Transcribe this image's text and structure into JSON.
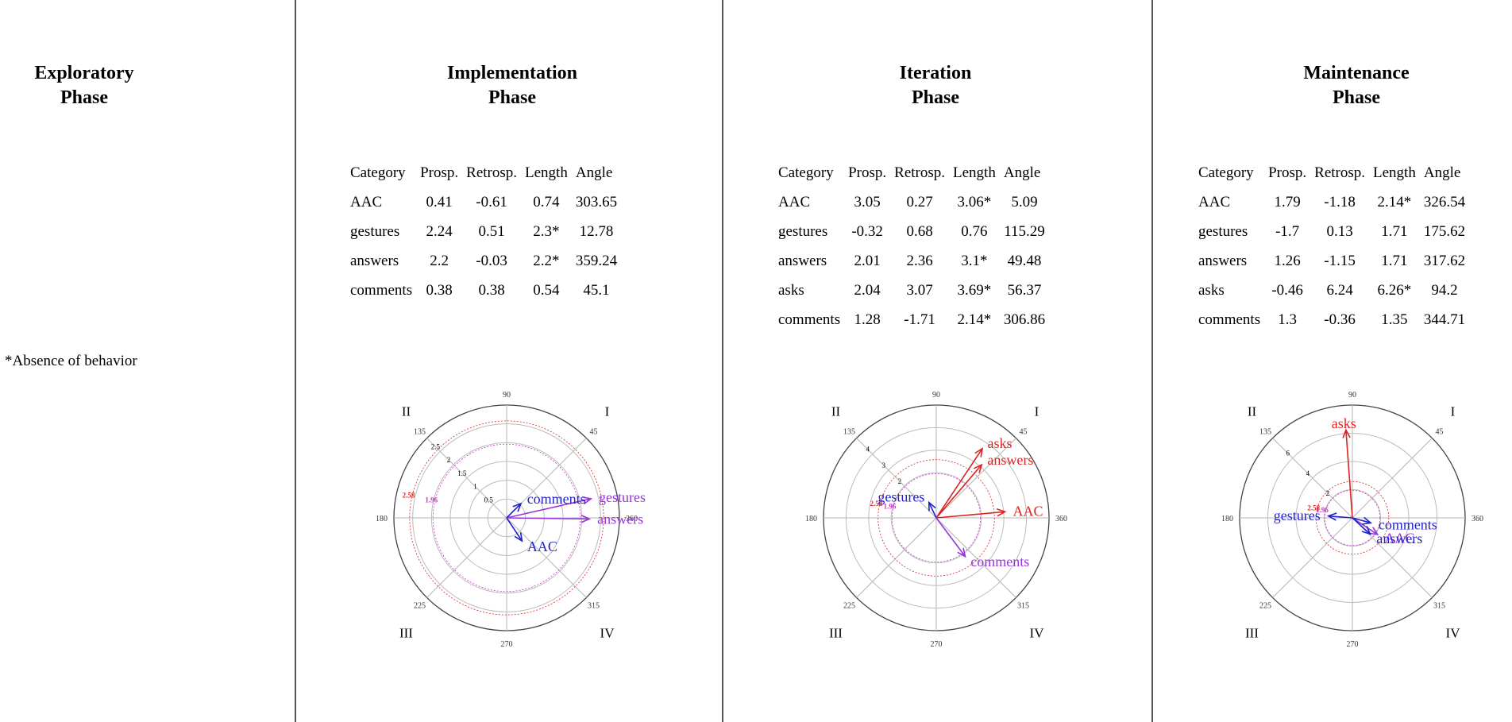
{
  "exploratory": {
    "title_line1": "Exploratory",
    "title_line2": "Phase"
  },
  "note": "*Absence of behavior",
  "table_headers": [
    "Category",
    "Prosp.",
    "Retrosp.",
    "Length",
    "Angle"
  ],
  "chart_data": [
    {
      "type": "polar-vector",
      "title_line1": "Implementation",
      "title_line2": "Phase",
      "table": [
        [
          "AAC",
          "0.41",
          "-0.61",
          "0.74",
          "303.65"
        ],
        [
          "gestures",
          "2.24",
          "0.51",
          "2.3*",
          "12.78"
        ],
        [
          "answers",
          "2.2",
          "-0.03",
          "2.2*",
          "359.24"
        ],
        [
          "comments",
          "0.38",
          "0.38",
          "0.54",
          "45.1"
        ]
      ],
      "rmax": 3,
      "ring_labels": [
        "0.5",
        "1",
        "1.5",
        "2",
        "2.5"
      ],
      "ring_values": [
        0.5,
        1,
        1.5,
        2,
        2.5
      ],
      "sig_labels": [
        "1.96",
        "2.58"
      ],
      "sig_values": [
        1.96,
        2.58
      ],
      "angle_labels": [
        "90",
        "45",
        "360",
        "315",
        "270",
        "225",
        "180",
        "135"
      ],
      "quadrants": [
        "I",
        "II",
        "III",
        "IV"
      ],
      "vectors": [
        {
          "label": "AAC",
          "length": 0.74,
          "angle": 303.65,
          "color": "#2222cc"
        },
        {
          "label": "gestures",
          "length": 2.3,
          "angle": 12.78,
          "color": "#9933dd"
        },
        {
          "label": "answers",
          "length": 2.2,
          "angle": 359.24,
          "color": "#9933dd"
        },
        {
          "label": "comments",
          "length": 0.54,
          "angle": 45.1,
          "color": "#2222cc"
        }
      ]
    },
    {
      "type": "polar-vector",
      "title_line1": "Iteration",
      "title_line2": "Phase",
      "table": [
        [
          "AAC",
          "3.05",
          "0.27",
          "3.06*",
          "5.09"
        ],
        [
          "gestures",
          "-0.32",
          "0.68",
          "0.76",
          "115.29"
        ],
        [
          "answers",
          "2.01",
          "2.36",
          "3.1*",
          "49.48"
        ],
        [
          "asks",
          "2.04",
          "3.07",
          "3.69*",
          "56.37"
        ],
        [
          "comments",
          "1.28",
          "-1.71",
          "2.14*",
          "306.86"
        ]
      ],
      "rmax": 5,
      "ring_labels": [
        "2",
        "3",
        "4"
      ],
      "ring_values": [
        2,
        3,
        4
      ],
      "sig_labels": [
        "1.96",
        "2.58"
      ],
      "sig_values": [
        1.96,
        2.58
      ],
      "angle_labels": [
        "90",
        "45",
        "360",
        "315",
        "270",
        "225",
        "180",
        "135"
      ],
      "quadrants": [
        "I",
        "II",
        "III",
        "IV"
      ],
      "vectors": [
        {
          "label": "AAC",
          "length": 3.06,
          "angle": 5.09,
          "color": "#dd2222"
        },
        {
          "label": "gestures",
          "length": 0.76,
          "angle": 115.29,
          "color": "#2222cc"
        },
        {
          "label": "answers",
          "length": 3.1,
          "angle": 49.48,
          "color": "#dd2222"
        },
        {
          "label": "asks",
          "length": 3.69,
          "angle": 56.37,
          "color": "#dd2222"
        },
        {
          "label": "comments",
          "length": 2.14,
          "angle": 306.86,
          "color": "#9933dd"
        }
      ]
    },
    {
      "type": "polar-vector",
      "title_line1": "Maintenance",
      "title_line2": "Phase",
      "table": [
        [
          "AAC",
          "1.79",
          "-1.18",
          "2.14*",
          "326.54"
        ],
        [
          "gestures",
          "-1.7",
          "0.13",
          "1.71",
          "175.62"
        ],
        [
          "answers",
          "1.26",
          "-1.15",
          "1.71",
          "317.62"
        ],
        [
          "asks",
          "-0.46",
          "6.24",
          "6.26*",
          "94.2"
        ],
        [
          "comments",
          "1.3",
          "-0.36",
          "1.35",
          "344.71"
        ]
      ],
      "rmax": 8,
      "ring_labels": [
        "2",
        "4",
        "6"
      ],
      "ring_values": [
        2,
        4,
        6
      ],
      "sig_labels": [
        "1.96",
        "2.58"
      ],
      "sig_values": [
        1.96,
        2.58
      ],
      "angle_labels": [
        "90",
        "45",
        "360",
        "315",
        "270",
        "225",
        "180",
        "135"
      ],
      "quadrants": [
        "I",
        "II",
        "III",
        "IV"
      ],
      "vectors": [
        {
          "label": "AAC",
          "length": 2.14,
          "angle": 326.54,
          "color": "#9933dd"
        },
        {
          "label": "gestures",
          "length": 1.71,
          "angle": 175.62,
          "color": "#2222cc"
        },
        {
          "label": "answers",
          "length": 1.71,
          "angle": 317.62,
          "color": "#2222cc"
        },
        {
          "label": "asks",
          "length": 6.26,
          "angle": 94.2,
          "color": "#dd2222"
        },
        {
          "label": "comments",
          "length": 1.35,
          "angle": 344.71,
          "color": "#2222cc"
        }
      ]
    }
  ],
  "colors": {
    "sig196": "#cc33cc",
    "sig258": "#dd2222",
    "rings": "#bbbbbb",
    "ring_labels": "#000000"
  }
}
